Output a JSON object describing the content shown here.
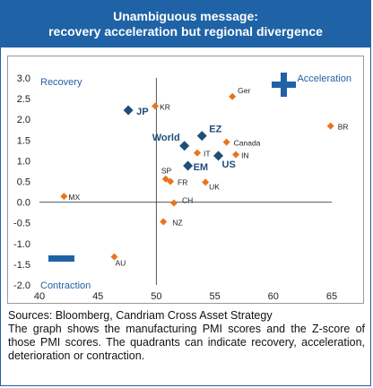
{
  "header": {
    "title_line1": "Unambiguous message:",
    "title_line2": "recovery acceleration but regional divergence"
  },
  "caption": {
    "sources": "Sources: Bloomberg, Candriam Cross Asset Strategy",
    "note": "The graph shows the manufacturing PMI scores and the Z-score of those PMI scores. The quadrants can indicate recovery, acceleration, deterioration or contraction."
  },
  "colors": {
    "accent": "#1f63a6",
    "diamond_country": "#e8741e",
    "diamond_region": "#1f4e79",
    "axis_text": "#222222",
    "quadrant_text": "#1f63a6",
    "border": "#9a9a9a"
  },
  "chart_data": {
    "type": "scatter",
    "xlim": [
      40,
      65
    ],
    "ylim": [
      -2.0,
      3.0
    ],
    "x_ticks": [
      "40",
      "45",
      "50",
      "55",
      "60",
      "65"
    ],
    "y_ticks": [
      "3.0",
      "2.5",
      "2.0",
      "1.5",
      "1.0",
      "0.5",
      "0.0",
      "-0.5",
      "-1.0",
      "-1.5",
      "-2.0"
    ],
    "crosshair": {
      "x": 50,
      "y": 0
    },
    "quadrant_labels": {
      "top_left": "Recovery",
      "top_right": "Acceleration",
      "bottom_left": "Contraction"
    },
    "symbols": {
      "plus": "+",
      "minus": "−"
    },
    "points": [
      {
        "label": "Ger",
        "x": 56.5,
        "y": 2.55,
        "kind": "country"
      },
      {
        "label": "KR",
        "x": 49.9,
        "y": 2.32,
        "kind": "country"
      },
      {
        "label": "JP",
        "x": 47.6,
        "y": 2.22,
        "kind": "region"
      },
      {
        "label": "BR",
        "x": 64.9,
        "y": 1.84,
        "kind": "country"
      },
      {
        "label": "EZ",
        "x": 53.9,
        "y": 1.6,
        "kind": "region"
      },
      {
        "label": "World",
        "x": 52.4,
        "y": 1.36,
        "kind": "region"
      },
      {
        "label": "Canada",
        "x": 56.0,
        "y": 1.45,
        "kind": "country"
      },
      {
        "label": "IT",
        "x": 53.5,
        "y": 1.19,
        "kind": "country"
      },
      {
        "label": "US",
        "x": 55.3,
        "y": 1.12,
        "kind": "region"
      },
      {
        "label": "IN",
        "x": 56.8,
        "y": 1.15,
        "kind": "country"
      },
      {
        "label": "EM",
        "x": 52.7,
        "y": 0.88,
        "kind": "region"
      },
      {
        "label": "SP",
        "x": 50.8,
        "y": 0.56,
        "kind": "country"
      },
      {
        "label": "FR",
        "x": 51.2,
        "y": 0.5,
        "kind": "country"
      },
      {
        "label": "UK",
        "x": 54.2,
        "y": 0.48,
        "kind": "country"
      },
      {
        "label": "MX",
        "x": 42.1,
        "y": 0.14,
        "kind": "country"
      },
      {
        "label": "CH",
        "x": 51.5,
        "y": -0.02,
        "kind": "country"
      },
      {
        "label": "NZ",
        "x": 50.6,
        "y": -0.47,
        "kind": "country"
      },
      {
        "label": "AU",
        "x": 46.4,
        "y": -1.32,
        "kind": "country"
      }
    ]
  }
}
